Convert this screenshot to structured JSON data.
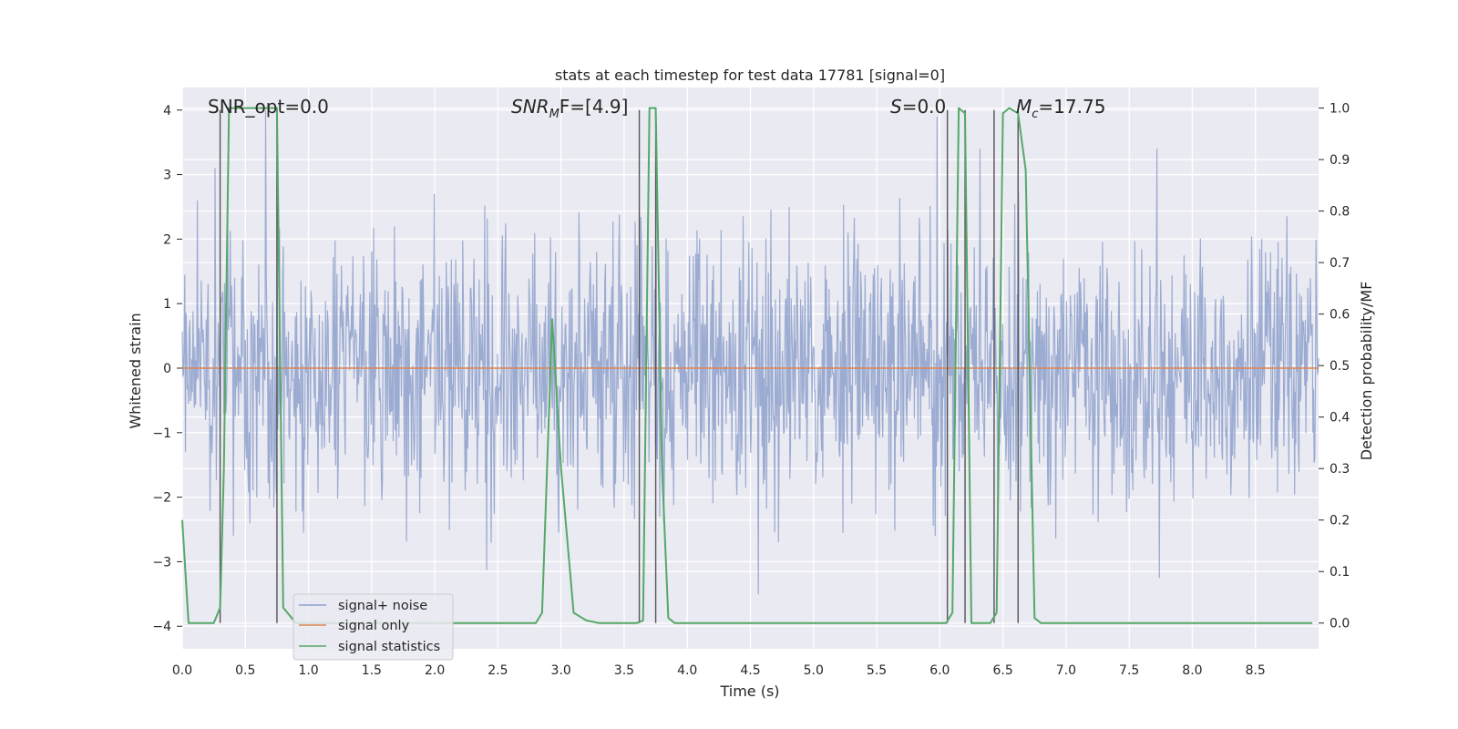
{
  "chart_data": {
    "type": "line",
    "title": "stats at each timestep for test data 17781 [signal=0]",
    "xlabel": "Time (s)",
    "ylabel_left": "Whitened strain",
    "ylabel_right": "Detection probability/MF",
    "xlim": [
      0.0,
      9.0
    ],
    "ylim_left": [
      -4.35,
      4.35
    ],
    "ylim_right": [
      -0.05,
      1.04
    ],
    "x_ticks": [
      "0.0",
      "0.5",
      "1.0",
      "1.5",
      "2.0",
      "2.5",
      "3.0",
      "3.5",
      "4.0",
      "4.5",
      "5.0",
      "5.5",
      "6.0",
      "6.5",
      "7.0",
      "7.5",
      "8.0",
      "8.5"
    ],
    "x_tick_values": [
      0.0,
      0.5,
      1.0,
      1.5,
      2.0,
      2.5,
      3.0,
      3.5,
      4.0,
      4.5,
      5.0,
      5.5,
      6.0,
      6.5,
      7.0,
      7.5,
      8.0,
      8.5
    ],
    "y_left_ticks": [
      "−4",
      "−3",
      "−2",
      "−1",
      "0",
      "1",
      "2",
      "3",
      "4"
    ],
    "y_left_tick_values": [
      -4,
      -3,
      -2,
      -1,
      0,
      1,
      2,
      3,
      4
    ],
    "y_right_ticks": [
      "0.0",
      "0.1",
      "0.2",
      "0.3",
      "0.4",
      "0.5",
      "0.6",
      "0.7",
      "0.8",
      "0.9",
      "1.0"
    ],
    "y_right_tick_values": [
      0.0,
      0.1,
      0.2,
      0.3,
      0.4,
      0.5,
      0.6,
      0.7,
      0.8,
      0.9,
      1.0
    ],
    "annotations": {
      "snr_opt": "SNR_opt=0.0",
      "snr_mf_main": "SNR",
      "snr_mf_sub": "M",
      "snr_mf_rest": "F=[4.9]",
      "s_main": "S",
      "s_rest": "=0.0",
      "mc_main": "M",
      "mc_sub": "c",
      "mc_rest": "=17.75"
    },
    "legend": {
      "placement": "lower-left",
      "entries": [
        "signal+ noise",
        "signal only",
        "signal statistics"
      ]
    },
    "colors": {
      "noise": "#8da0cb",
      "signal_only": "#dd8452",
      "statistics": "#55a868",
      "vlines": "#555555",
      "background": "#eaeaf2"
    },
    "series": [
      {
        "name": "signal statistics",
        "axis": "right",
        "x": [
          0.0,
          0.05,
          0.1,
          0.25,
          0.3,
          0.33,
          0.37,
          0.5,
          0.6,
          0.7,
          0.75,
          0.8,
          0.9,
          1.0,
          1.5,
          2.0,
          2.5,
          2.8,
          2.85,
          2.93,
          3.0,
          3.1,
          3.2,
          3.3,
          3.5,
          3.6,
          3.65,
          3.7,
          3.75,
          3.8,
          3.85,
          3.9,
          4.0,
          4.5,
          5.0,
          5.5,
          6.0,
          6.05,
          6.1,
          6.15,
          6.2,
          6.25,
          6.4,
          6.45,
          6.5,
          6.55,
          6.62,
          6.68,
          6.75,
          6.8,
          7.0,
          8.0,
          8.95
        ],
        "y": [
          0.2,
          0.0,
          0.0,
          0.0,
          0.03,
          0.3,
          1.0,
          1.0,
          1.0,
          1.0,
          1.0,
          0.03,
          0.0,
          0.0,
          0.0,
          0.0,
          0.0,
          0.0,
          0.02,
          0.59,
          0.3,
          0.02,
          0.005,
          0.0,
          0.0,
          0.0,
          0.005,
          1.0,
          1.0,
          0.3,
          0.01,
          0.0,
          0.0,
          0.0,
          0.0,
          0.0,
          0.0,
          0.0,
          0.02,
          1.0,
          0.99,
          0.0,
          0.0,
          0.02,
          0.99,
          1.0,
          0.99,
          0.88,
          0.01,
          0.0,
          0.0,
          0.0,
          0.0
        ]
      },
      {
        "name": "signal only",
        "axis": "left",
        "x": [
          0.0,
          9.0
        ],
        "y": [
          0.0,
          0.0
        ]
      }
    ],
    "vertical_lines_x": [
      0.3,
      0.75,
      3.62,
      3.75,
      6.06,
      6.2,
      6.43,
      6.62
    ],
    "noise_stats": {
      "samples": 1800,
      "sigma": 1.0,
      "tall_spike_times": [
        0.12,
        0.26,
        0.66,
        0.75,
        3.75,
        5.98,
        6.32,
        7.72
      ],
      "tall_spike_values": [
        2.6,
        3.1,
        4.0,
        3.3,
        3.2,
        3.9,
        3.4,
        3.4
      ]
    }
  }
}
